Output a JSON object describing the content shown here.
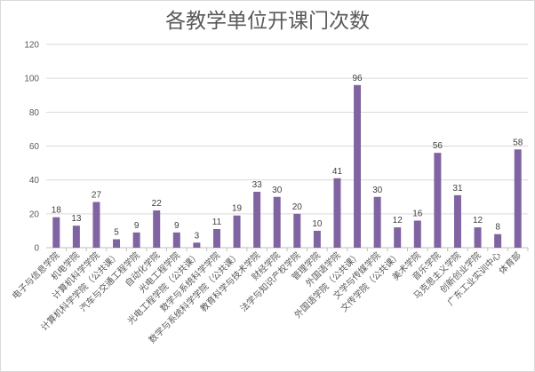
{
  "chart_data": {
    "type": "bar",
    "title": "各教学单位开课门次数",
    "xlabel": "",
    "ylabel": "",
    "ylim": [
      0,
      120
    ],
    "yticks": [
      0,
      20,
      40,
      60,
      80,
      100,
      120
    ],
    "grid": true,
    "bar_color": "#8064a2",
    "gridline_color": "#d9d9d9",
    "categories": [
      "电子与信息学院",
      "机电学院",
      "计算机科学学院",
      "计算机科学学院（公共课）",
      "汽车与交通工程学院",
      "自动化学院",
      "光电工程学院",
      "光电工程学院（公共课）",
      "数学与系统科学学院",
      "数学与系统科学学院（公共课）",
      "教育科学与技术学院",
      "财经学院",
      "法学与知识产权学院",
      "管理学院",
      "外国语学院",
      "外国语学院（公共课）",
      "文学与传媒学院",
      "文传学院（公共课）",
      "美术学院",
      "音乐学院",
      "马克思主义学院",
      "创新创业学院",
      "广东工业实训中心",
      "体育部"
    ],
    "values": [
      18,
      13,
      27,
      5,
      9,
      22,
      9,
      3,
      11,
      19,
      33,
      30,
      20,
      10,
      41,
      96,
      30,
      12,
      16,
      56,
      31,
      12,
      8,
      58
    ]
  }
}
